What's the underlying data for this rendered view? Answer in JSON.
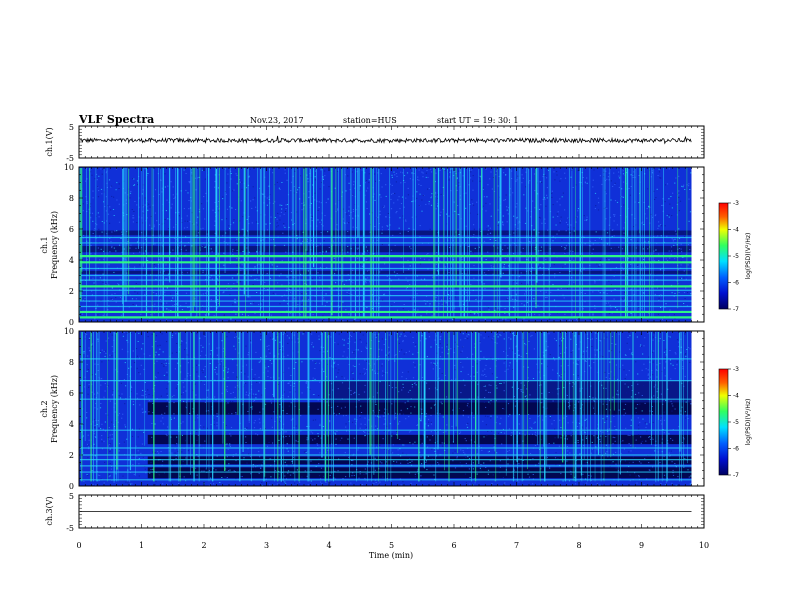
{
  "header": {
    "title": "VLF Spectra",
    "date": "Nov.23, 2017",
    "station": "station=HUS",
    "start": "start  UT =   19: 30: 1"
  },
  "colors": {
    "bg_dark": "#00003a",
    "bg_blue": "#1030d8",
    "bright_blue": "#3a6cff",
    "cyan": "#2ad6ff",
    "green": "#30ff80",
    "text": "#000000"
  },
  "colorbar": {
    "ticks": [
      "-3",
      "-4",
      "-5",
      "-6",
      "-7"
    ],
    "values": [
      -3,
      -4,
      -5,
      -6,
      -7
    ],
    "label": "log(PSD)(V²/Hz)"
  },
  "chart_data": {
    "type": "heatmap",
    "title": "VLF Spectra",
    "x": {
      "label": "Time (min)",
      "range": [
        0,
        10
      ],
      "ticks": [
        "0",
        "1",
        "2",
        "3",
        "4",
        "5",
        "6",
        "7",
        "8",
        "9",
        "10"
      ]
    },
    "panels": [
      {
        "id": "ch1-waveform",
        "type": "line",
        "ylabel": "ch.1(V)",
        "yrange": [
          -5,
          5
        ],
        "yticks": [
          "5",
          "-5"
        ],
        "signal": "noise centered near +0.5 V, amplitude ~0.6 V, a few spikes near 9 min"
      },
      {
        "id": "ch1-spectrogram",
        "type": "heatmap",
        "ylabel": "ch.1\nFrequency (kHz)",
        "yrange": [
          0,
          10
        ],
        "yticks": [
          "0",
          "2",
          "4",
          "6",
          "8",
          "10"
        ],
        "color_scale": [
          -7,
          -3
        ],
        "lines_khz": [
          0.3,
          0.65,
          1.0,
          1.35,
          1.7,
          2.05,
          2.3,
          2.7,
          3.0,
          3.45,
          3.85,
          4.25,
          5.1,
          5.45
        ],
        "data_end_min": 9.8
      },
      {
        "id": "ch2-spectrogram",
        "type": "heatmap",
        "ylabel": "ch.2\nFrequency (kHz)",
        "yrange": [
          0,
          10
        ],
        "yticks": [
          "0",
          "2",
          "4",
          "6",
          "8",
          "10"
        ],
        "color_scale": [
          -7,
          -3
        ],
        "lines_khz": [
          0.4,
          0.9,
          1.3,
          1.7,
          2.0,
          2.45,
          3.6,
          5.6,
          6.8,
          8.2
        ],
        "data_end_min": 9.8
      },
      {
        "id": "ch3-waveform",
        "type": "line",
        "ylabel": "ch.3(V)",
        "yrange": [
          -5,
          5
        ],
        "yticks": [
          "5",
          "-5"
        ],
        "signal": "flat at 0 V"
      }
    ]
  }
}
